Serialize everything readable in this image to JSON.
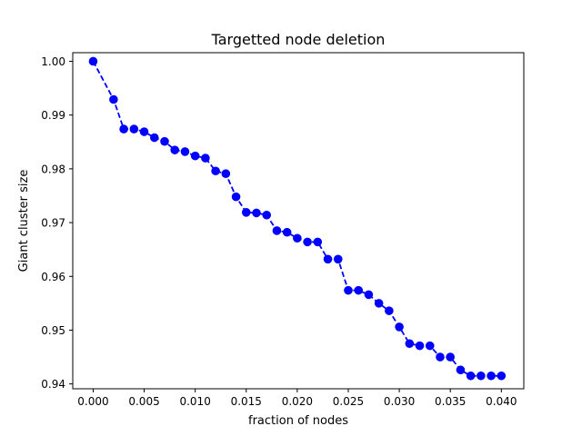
{
  "chart_data": {
    "type": "line",
    "title": "Targetted node deletion",
    "xlabel": "fraction of nodes",
    "ylabel": "Giant cluster size",
    "xlim": [
      -0.002,
      0.0422
    ],
    "ylim": [
      0.9391,
      1.0016
    ],
    "grid": false,
    "xticks": [
      0.0,
      0.005,
      0.01,
      0.015,
      0.02,
      0.025,
      0.03,
      0.035,
      0.04
    ],
    "xtick_labels": [
      "0.000",
      "0.005",
      "0.010",
      "0.015",
      "0.020",
      "0.025",
      "0.030",
      "0.035",
      "0.040"
    ],
    "yticks": [
      0.94,
      0.95,
      0.96,
      0.97,
      0.98,
      0.99,
      1.0
    ],
    "ytick_labels": [
      "0.94",
      "0.95",
      "0.96",
      "0.97",
      "0.98",
      "0.99",
      "1.00"
    ],
    "series": [
      {
        "color": "#0000ff",
        "line_style": "dashed",
        "marker": "circle",
        "x": [
          0.0,
          0.002,
          0.003,
          0.004,
          0.005,
          0.006,
          0.007,
          0.008,
          0.009,
          0.01,
          0.011,
          0.012,
          0.013,
          0.014,
          0.015,
          0.016,
          0.017,
          0.018,
          0.019,
          0.02,
          0.021,
          0.022,
          0.023,
          0.024,
          0.025,
          0.026,
          0.027,
          0.028,
          0.029,
          0.03,
          0.031,
          0.032,
          0.033,
          0.034,
          0.035,
          0.036,
          0.037,
          0.038,
          0.039,
          0.04
        ],
        "y": [
          1.0,
          0.9929,
          0.9874,
          0.9874,
          0.9869,
          0.9858,
          0.9851,
          0.9835,
          0.9832,
          0.9824,
          0.982,
          0.9796,
          0.9791,
          0.9748,
          0.9719,
          0.9718,
          0.9714,
          0.9685,
          0.9682,
          0.9671,
          0.9664,
          0.9664,
          0.9632,
          0.9632,
          0.9574,
          0.9574,
          0.9566,
          0.955,
          0.9536,
          0.9506,
          0.9475,
          0.9471,
          0.9471,
          0.945,
          0.945,
          0.9426,
          0.9415,
          0.9415,
          0.9415,
          0.9415
        ]
      }
    ]
  }
}
